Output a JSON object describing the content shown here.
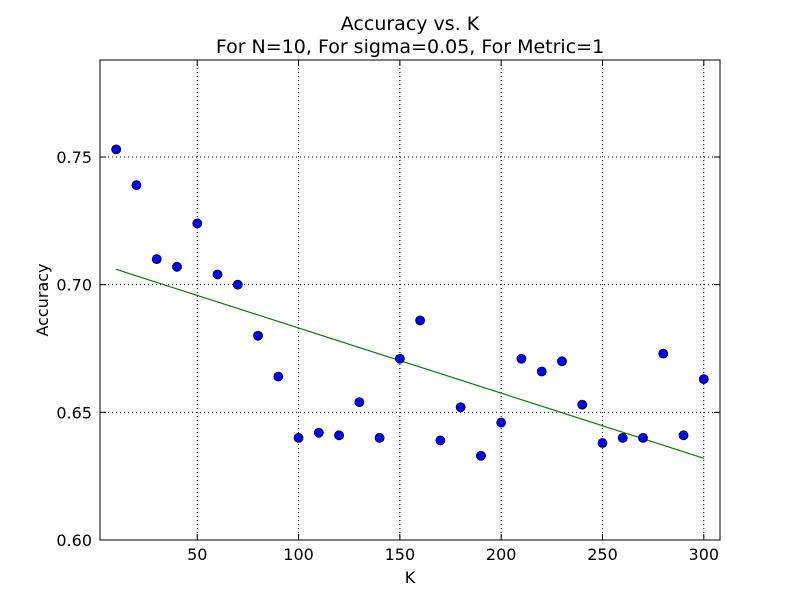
{
  "chart_data": {
    "type": "scatter",
    "title": "Accuracy vs. K",
    "subtitle": "For N=10, For sigma=0.05, For Metric=1",
    "xlabel": "K",
    "ylabel": "Accuracy",
    "xlim": [
      2,
      308
    ],
    "ylim": [
      0.6,
      0.788
    ],
    "xticks": [
      50,
      100,
      150,
      200,
      250,
      300
    ],
    "xtick_labels": [
      "50",
      "100",
      "150",
      "200",
      "250",
      "300"
    ],
    "yticks": [
      0.6,
      0.65,
      0.7,
      0.75
    ],
    "ytick_labels": [
      "0.60",
      "0.65",
      "0.70",
      "0.75"
    ],
    "grid": true,
    "series": [
      {
        "kind": "scatter",
        "color": "#0000ff",
        "x": [
          10,
          20,
          30,
          40,
          50,
          60,
          70,
          80,
          90,
          100,
          110,
          120,
          130,
          140,
          150,
          160,
          170,
          180,
          190,
          200,
          210,
          220,
          230,
          240,
          250,
          260,
          270,
          280,
          290,
          300
        ],
        "y": [
          0.753,
          0.739,
          0.71,
          0.707,
          0.724,
          0.704,
          0.7,
          0.68,
          0.664,
          0.64,
          0.642,
          0.641,
          0.654,
          0.64,
          0.671,
          0.686,
          0.639,
          0.652,
          0.633,
          0.646,
          0.671,
          0.666,
          0.67,
          0.653,
          0.638,
          0.64,
          0.64,
          0.673,
          0.641,
          0.663
        ]
      },
      {
        "kind": "line",
        "color": "#008000",
        "x": [
          10,
          300
        ],
        "y": [
          0.706,
          0.632
        ]
      }
    ]
  }
}
